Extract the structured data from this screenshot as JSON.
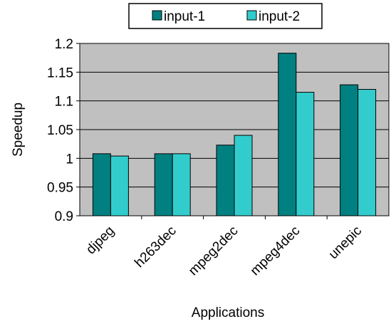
{
  "chart_data": {
    "type": "bar",
    "title": "",
    "xlabel": "Applications",
    "ylabel": "Speedup",
    "categories": [
      "djpeg",
      "h263dec",
      "mpeg2dec",
      "mpeg4dec",
      "unepic"
    ],
    "series": [
      {
        "name": "input-1",
        "values": [
          1.008,
          1.008,
          1.023,
          1.183,
          1.128
        ]
      },
      {
        "name": "input-2",
        "values": [
          1.004,
          1.008,
          1.04,
          1.115,
          1.12
        ]
      }
    ],
    "ylim": [
      0.9,
      1.2
    ],
    "yticks": [
      "0.9",
      "0.95",
      "1",
      "1.05",
      "1.1",
      "1.15",
      "1.2"
    ],
    "grid": true,
    "legend_position": "top",
    "colors": {
      "plot_background": "#c0c0c0",
      "input-1": "#008080",
      "input-2": "#33cccc",
      "gridline": "#000000"
    }
  }
}
